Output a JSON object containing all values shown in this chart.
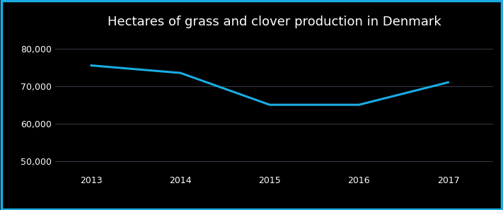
{
  "title": "Hectares of grass and clover production in Denmark",
  "x_values": [
    2013,
    2014,
    2015,
    2016,
    2017
  ],
  "y_values": [
    75500,
    73500,
    65000,
    65000,
    71000
  ],
  "line_color": "#1aace3",
  "line_width": 2.2,
  "background_color": "#000000",
  "text_color": "#ffffff",
  "grid_color": "#3a3a4a",
  "border_color": "#1aace3",
  "ylim": [
    47000,
    84000
  ],
  "yticks": [
    50000,
    60000,
    70000,
    80000
  ],
  "title_fontsize": 13,
  "tick_fontsize": 9
}
